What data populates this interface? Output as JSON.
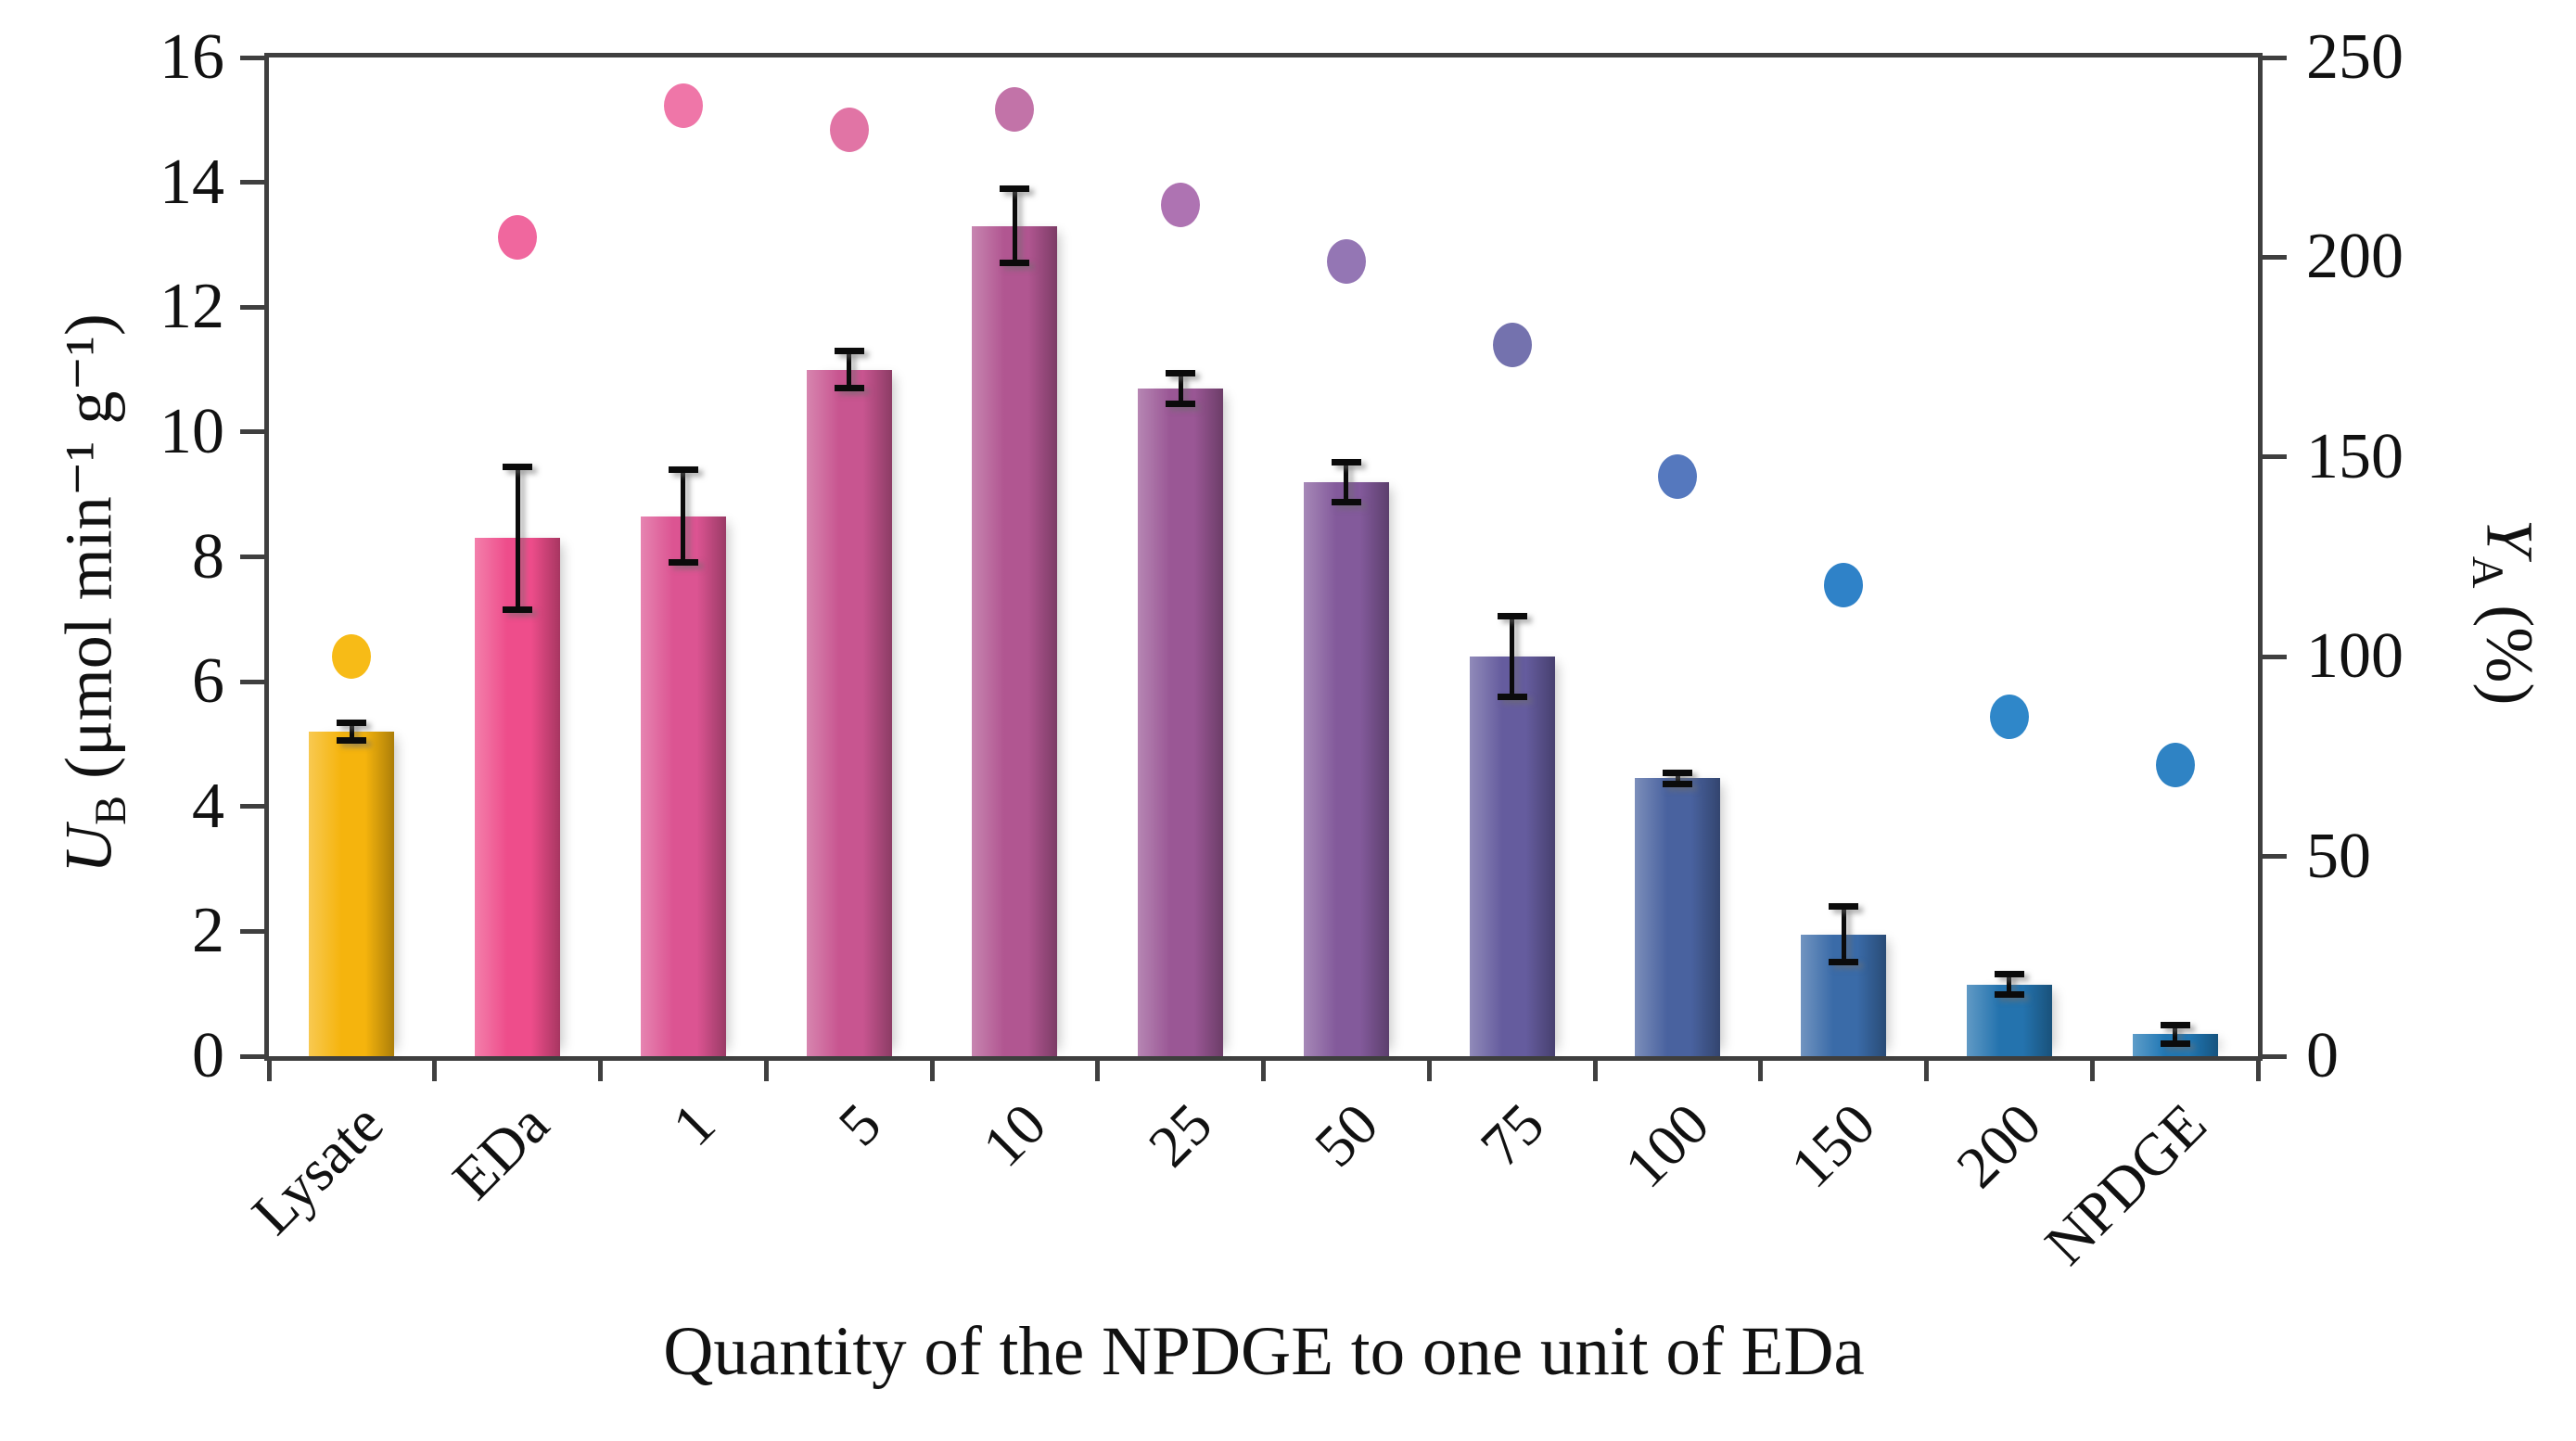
{
  "figure": {
    "background": "#FFFFFF",
    "axis_color": "#3F3F3F",
    "text_color": "#111111"
  },
  "chart_data": {
    "type": "bar",
    "subtype": "dual-axis bar with scatter overlay",
    "title": "",
    "x_title": "Quantity of the NPDGE to one unit of EDa",
    "y_left_title": {
      "symbol": "U",
      "subscript": "B",
      "rest": " (μmol min⁻¹ g⁻¹)"
    },
    "y_right_title": {
      "symbol": "Y",
      "subscript": "A",
      "rest": " (%)"
    },
    "y_left": {
      "min": 0,
      "max": 16,
      "ticks": [
        0,
        2,
        4,
        6,
        8,
        10,
        12,
        14,
        16
      ]
    },
    "y_right": {
      "min": 0,
      "max": 250,
      "ticks": [
        0,
        50,
        100,
        150,
        200,
        250
      ]
    },
    "grid": "off",
    "legend": "none",
    "categories": [
      "Lysate",
      "EDa",
      "1",
      "5",
      "10",
      "25",
      "50",
      "75",
      "100",
      "150",
      "200",
      "NPDGE"
    ],
    "bar_series": {
      "name": "UB activity (μmol min⁻¹ g⁻¹)",
      "axis": "left",
      "values": [
        5.2,
        8.3,
        8.65,
        11.0,
        13.3,
        10.7,
        9.2,
        6.4,
        4.45,
        1.95,
        1.15,
        0.35
      ],
      "errors": [
        0.15,
        1.15,
        0.75,
        0.3,
        0.6,
        0.25,
        0.33,
        0.65,
        0.1,
        0.45,
        0.17,
        0.15
      ],
      "colors": [
        "#F5B40D",
        "#EE4D8B",
        "#DC5492",
        "#C85590",
        "#B15691",
        "#9A5795",
        "#835A9B",
        "#655C9E",
        "#49629F",
        "#3A6BA8",
        "#2473AE",
        "#2077B4"
      ]
    },
    "dot_series": {
      "name": "YA (%)",
      "axis": "right",
      "values": [
        100,
        205,
        238,
        232,
        237,
        213,
        199,
        178,
        145,
        118,
        85,
        73
      ],
      "colors": [
        "#F7BB17",
        "#F0679E",
        "#EF76A8",
        "#E174A5",
        "#C273A8",
        "#AE73B2",
        "#9476B4",
        "#7472AE",
        "#5578BE",
        "#2F82C8",
        "#2F87C9",
        "#2F83C4"
      ]
    }
  }
}
